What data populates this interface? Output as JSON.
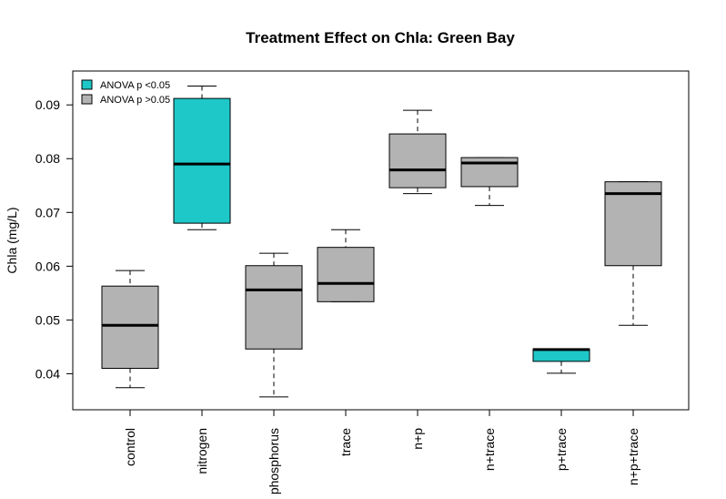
{
  "chart_data": {
    "type": "boxplot",
    "title": "Treatment Effect on Chla: Green Bay",
    "xlabel": "",
    "ylabel": "Chla (mg/L)",
    "ylim": [
      0.0333,
      0.0963
    ],
    "yticks": [
      "0.04",
      "0.05",
      "0.06",
      "0.07",
      "0.08",
      "0.09"
    ],
    "ytick_values": [
      0.04,
      0.05,
      0.06,
      0.07,
      0.08,
      0.09
    ],
    "categories": [
      "control",
      "nitrogen",
      "phosphorus",
      "trace",
      "n+p",
      "n+trace",
      "p+trace",
      "n+p+trace"
    ],
    "boxes": [
      {
        "category": "control",
        "min": 0.0374,
        "q1": 0.041,
        "median": 0.049,
        "q3": 0.0563,
        "max": 0.0592,
        "group": "ANOVA p >0.05"
      },
      {
        "category": "nitrogen",
        "min": 0.0668,
        "q1": 0.068,
        "median": 0.079,
        "q3": 0.0912,
        "max": 0.0935,
        "group": "ANOVA p <0.05"
      },
      {
        "category": "phosphorus",
        "min": 0.0357,
        "q1": 0.0446,
        "median": 0.0556,
        "q3": 0.0601,
        "max": 0.0624,
        "group": "ANOVA p >0.05"
      },
      {
        "category": "trace",
        "min": 0.0534,
        "q1": 0.0534,
        "median": 0.0568,
        "q3": 0.0635,
        "max": 0.0668,
        "group": "ANOVA p >0.05"
      },
      {
        "category": "n+p",
        "min": 0.0735,
        "q1": 0.0746,
        "median": 0.0779,
        "q3": 0.0846,
        "max": 0.089,
        "group": "ANOVA p >0.05"
      },
      {
        "category": "n+trace",
        "min": 0.0713,
        "q1": 0.0748,
        "median": 0.0792,
        "q3": 0.0802,
        "max": 0.0802,
        "group": "ANOVA p >0.05"
      },
      {
        "category": "p+trace",
        "min": 0.0401,
        "q1": 0.0423,
        "median": 0.0445,
        "q3": 0.0446,
        "max": 0.0446,
        "group": "ANOVA p <0.05"
      },
      {
        "category": "n+p+trace",
        "min": 0.049,
        "q1": 0.0601,
        "median": 0.0735,
        "q3": 0.0757,
        "max": 0.0757,
        "group": "ANOVA p >0.05"
      }
    ],
    "legend": {
      "placement": "top-left",
      "entries": [
        {
          "label": "ANOVA p <0.05",
          "color": "#1ec8c8"
        },
        {
          "label": "ANOVA p >0.05",
          "color": "#b3b3b3"
        }
      ]
    },
    "colors": {
      "significant": "#1ec8c8",
      "not_significant": "#b3b3b3"
    },
    "grid": false
  }
}
